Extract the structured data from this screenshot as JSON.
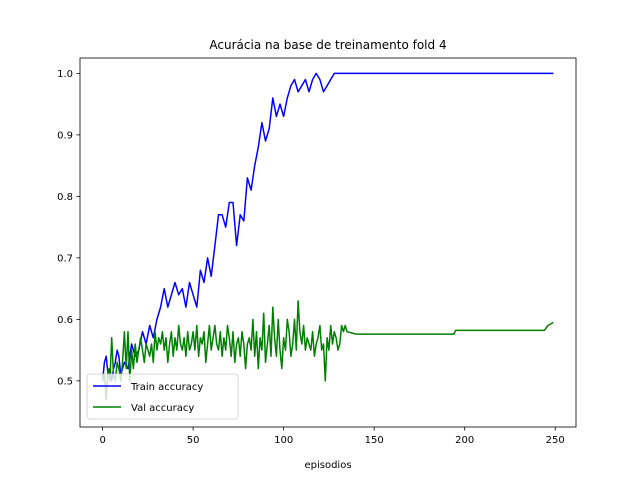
{
  "chart_data": {
    "type": "line",
    "title": "Acurácia na base de treinamento fold 4",
    "xlabel": "episodios",
    "ylabel": "",
    "xlim": [
      -12.5,
      261.5
    ],
    "ylim": [
      0.425,
      1.025
    ],
    "xticks": [
      0,
      50,
      100,
      150,
      200,
      250
    ],
    "yticks": [
      0.5,
      0.6,
      0.7,
      0.8,
      0.9,
      1.0
    ],
    "xtick_labels": [
      "0",
      "50",
      "100",
      "150",
      "200",
      "250"
    ],
    "ytick_labels": [
      "0.5",
      "0.6",
      "0.7",
      "0.8",
      "0.9",
      "1.0"
    ],
    "grid": false,
    "legend_position": "lower-left",
    "series": [
      {
        "name": "Train accuracy",
        "color": "#0000ff",
        "x": [
          0,
          1,
          2,
          3,
          4,
          5,
          6,
          7,
          8,
          9,
          10,
          12,
          14,
          16,
          18,
          20,
          22,
          24,
          26,
          28,
          30,
          32,
          34,
          36,
          38,
          40,
          42,
          44,
          46,
          48,
          50,
          52,
          54,
          56,
          58,
          60,
          62,
          64,
          66,
          68,
          70,
          72,
          74,
          76,
          78,
          80,
          82,
          84,
          86,
          88,
          90,
          92,
          94,
          96,
          98,
          100,
          102,
          104,
          106,
          108,
          110,
          112,
          114,
          116,
          118,
          120,
          122,
          124,
          126,
          128,
          130,
          135,
          140,
          150,
          200,
          249
        ],
        "y": [
          0.5,
          0.53,
          0.54,
          0.51,
          0.52,
          0.5,
          0.52,
          0.53,
          0.55,
          0.54,
          0.51,
          0.53,
          0.52,
          0.56,
          0.54,
          0.55,
          0.58,
          0.56,
          0.59,
          0.57,
          0.6,
          0.62,
          0.65,
          0.62,
          0.64,
          0.66,
          0.64,
          0.65,
          0.62,
          0.66,
          0.64,
          0.62,
          0.68,
          0.66,
          0.7,
          0.67,
          0.72,
          0.77,
          0.77,
          0.75,
          0.79,
          0.79,
          0.72,
          0.77,
          0.76,
          0.83,
          0.81,
          0.85,
          0.88,
          0.92,
          0.89,
          0.91,
          0.96,
          0.93,
          0.95,
          0.93,
          0.96,
          0.98,
          0.99,
          0.97,
          0.98,
          0.99,
          0.97,
          0.99,
          1.0,
          0.99,
          0.97,
          0.98,
          0.99,
          1.0,
          1.0,
          1.0,
          1.0,
          1.0,
          1.0,
          1.0
        ]
      },
      {
        "name": "Val accuracy",
        "color": "#008000",
        "x": [
          0,
          1,
          2,
          3,
          4,
          5,
          6,
          7,
          8,
          9,
          10,
          11,
          12,
          13,
          14,
          15,
          16,
          17,
          18,
          19,
          20,
          21,
          22,
          23,
          24,
          25,
          26,
          27,
          28,
          29,
          30,
          31,
          32,
          33,
          34,
          35,
          36,
          37,
          38,
          39,
          40,
          41,
          42,
          43,
          44,
          45,
          46,
          47,
          48,
          49,
          50,
          51,
          52,
          53,
          54,
          55,
          56,
          57,
          58,
          59,
          60,
          61,
          62,
          63,
          64,
          65,
          66,
          67,
          68,
          69,
          70,
          71,
          72,
          73,
          74,
          75,
          76,
          77,
          78,
          79,
          80,
          81,
          82,
          83,
          84,
          85,
          86,
          87,
          88,
          89,
          90,
          91,
          92,
          93,
          94,
          95,
          96,
          97,
          98,
          99,
          100,
          101,
          102,
          103,
          104,
          105,
          106,
          107,
          108,
          109,
          110,
          111,
          112,
          113,
          114,
          115,
          116,
          117,
          118,
          119,
          120,
          121,
          122,
          123,
          124,
          125,
          126,
          127,
          128,
          129,
          130,
          131,
          132,
          133,
          134,
          135,
          140,
          150,
          160,
          170,
          180,
          194,
          195,
          200,
          210,
          220,
          230,
          240,
          244,
          246,
          249
        ],
        "y": [
          0.5,
          0.51,
          0.47,
          0.52,
          0.5,
          0.57,
          0.51,
          0.5,
          0.53,
          0.52,
          0.5,
          0.53,
          0.58,
          0.52,
          0.58,
          0.5,
          0.55,
          0.52,
          0.56,
          0.53,
          0.55,
          0.57,
          0.55,
          0.53,
          0.56,
          0.55,
          0.54,
          0.56,
          0.53,
          0.58,
          0.55,
          0.57,
          0.56,
          0.58,
          0.55,
          0.57,
          0.53,
          0.56,
          0.58,
          0.54,
          0.57,
          0.55,
          0.59,
          0.56,
          0.55,
          0.57,
          0.54,
          0.58,
          0.55,
          0.56,
          0.58,
          0.55,
          0.59,
          0.54,
          0.57,
          0.56,
          0.58,
          0.53,
          0.56,
          0.59,
          0.55,
          0.57,
          0.59,
          0.56,
          0.55,
          0.58,
          0.54,
          0.57,
          0.55,
          0.59,
          0.57,
          0.54,
          0.58,
          0.53,
          0.56,
          0.57,
          0.54,
          0.58,
          0.56,
          0.52,
          0.56,
          0.57,
          0.55,
          0.6,
          0.54,
          0.58,
          0.52,
          0.57,
          0.55,
          0.61,
          0.53,
          0.56,
          0.59,
          0.54,
          0.62,
          0.57,
          0.54,
          0.6,
          0.55,
          0.52,
          0.57,
          0.55,
          0.6,
          0.58,
          0.54,
          0.56,
          0.6,
          0.55,
          0.63,
          0.58,
          0.56,
          0.59,
          0.55,
          0.57,
          0.56,
          0.55,
          0.58,
          0.54,
          0.56,
          0.57,
          0.59,
          0.55,
          0.56,
          0.5,
          0.57,
          0.55,
          0.59,
          0.56,
          0.58,
          0.57,
          0.55,
          0.56,
          0.59,
          0.58,
          0.59,
          0.58,
          0.576,
          0.576,
          0.576,
          0.576,
          0.576,
          0.576,
          0.582,
          0.582,
          0.582,
          0.582,
          0.582,
          0.582,
          0.582,
          0.59,
          0.595
        ]
      }
    ]
  }
}
